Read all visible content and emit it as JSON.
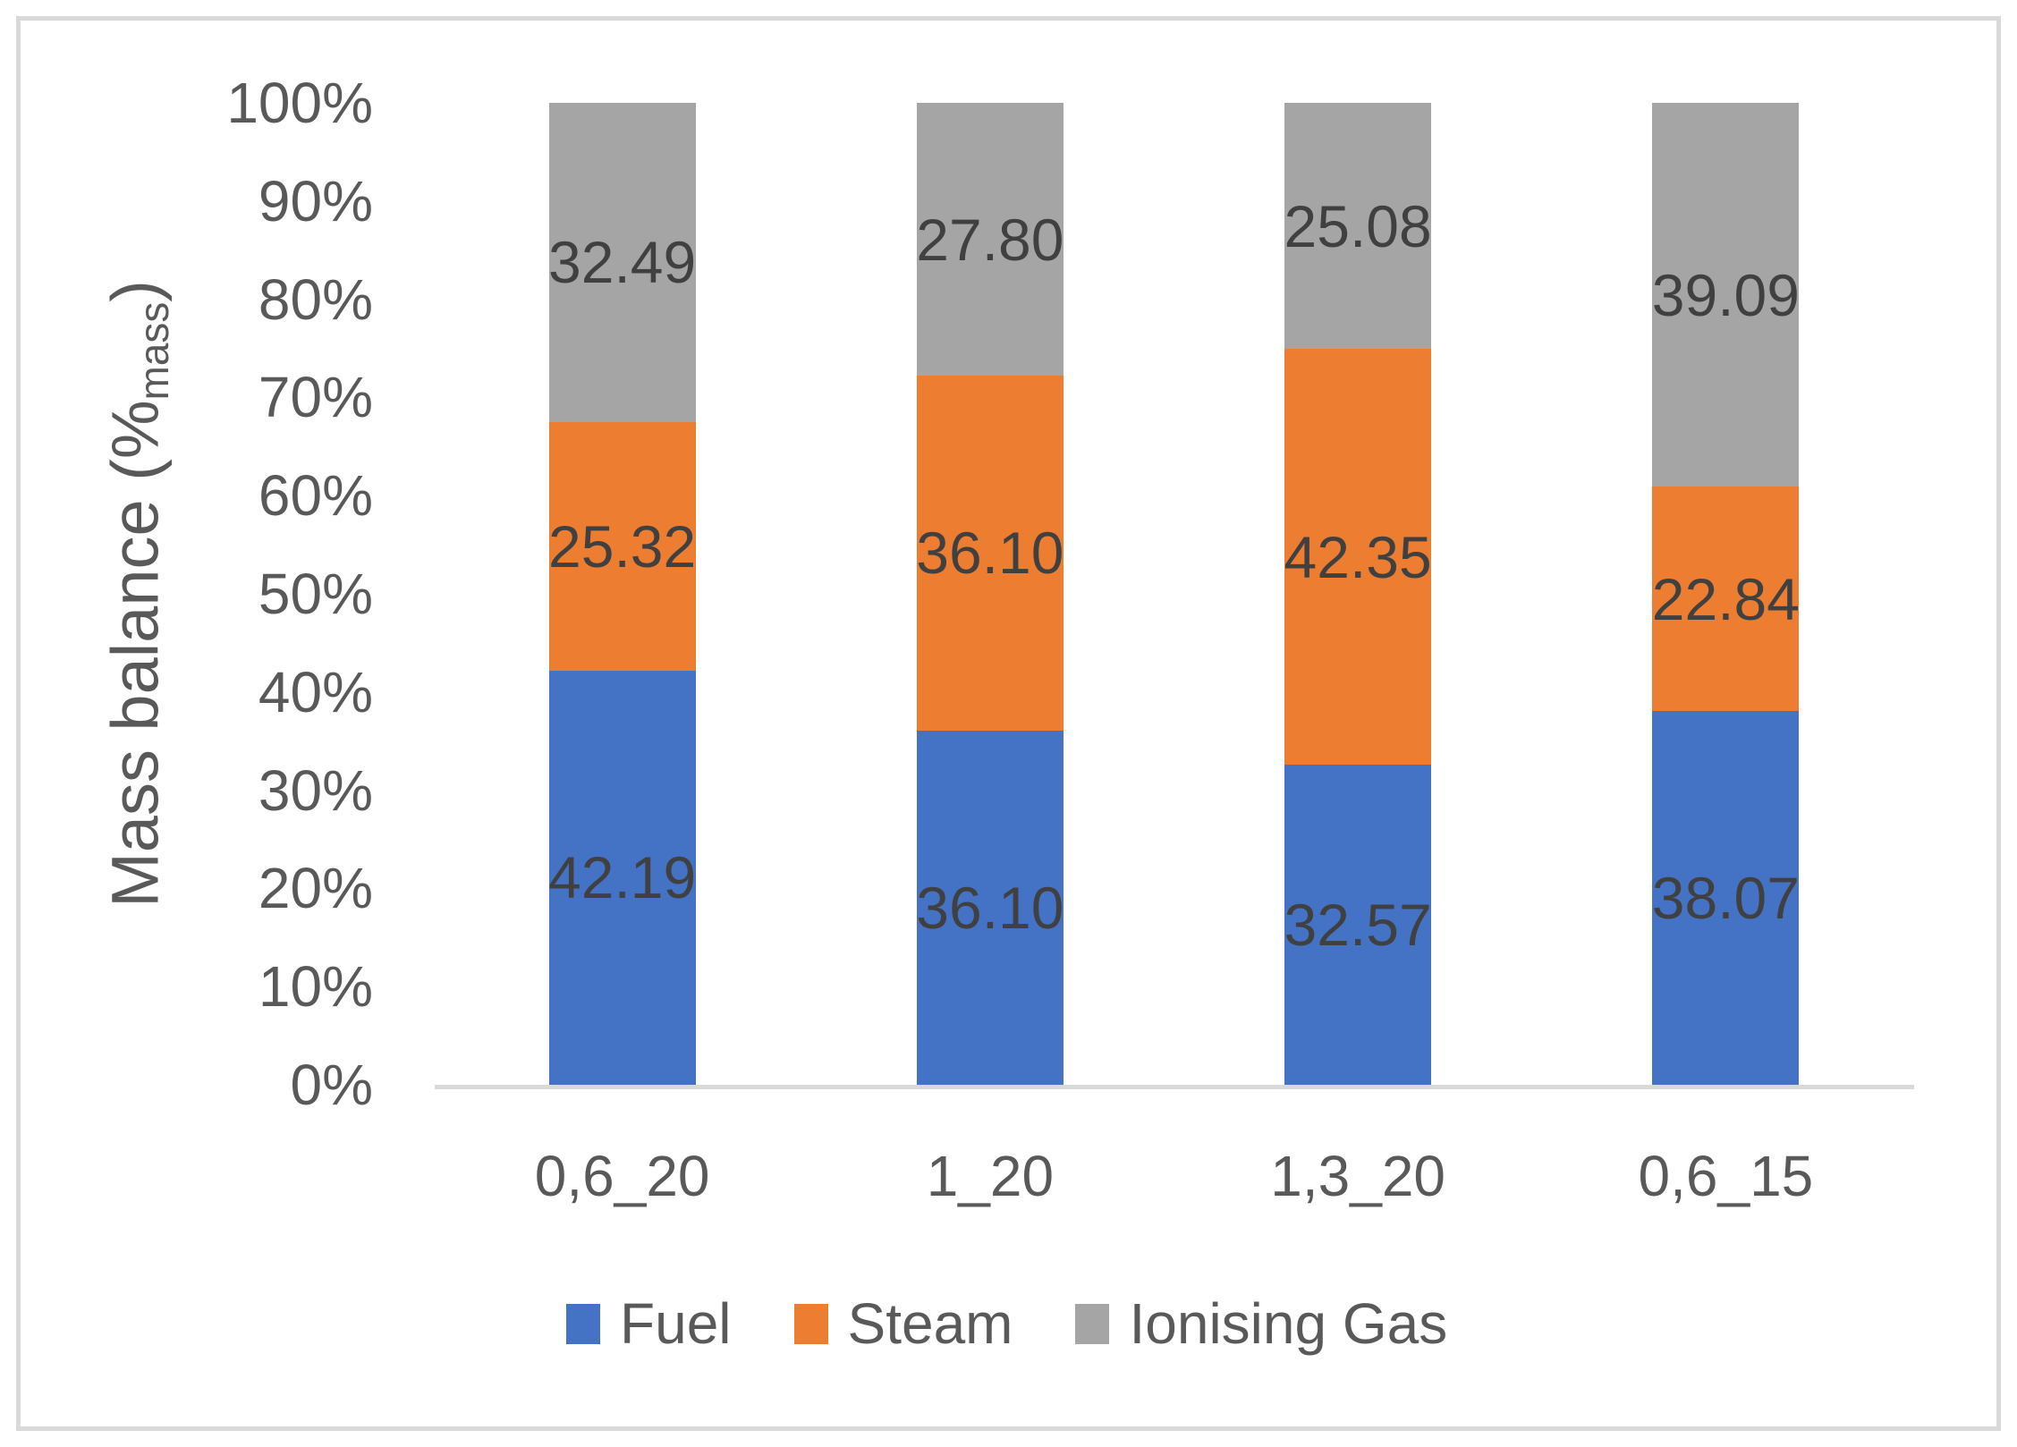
{
  "chart_data": {
    "type": "bar",
    "stacked": true,
    "percent_stacked": true,
    "categories": [
      "0,6_20",
      "1_20",
      "1,3_20",
      "0,6_15"
    ],
    "series": [
      {
        "name": "Fuel",
        "color": "#4472C4",
        "values": [
          42.19,
          36.1,
          32.57,
          38.07
        ]
      },
      {
        "name": "Steam",
        "color": "#ED7D31",
        "values": [
          25.32,
          36.1,
          42.35,
          22.84
        ]
      },
      {
        "name": "Ionising Gas",
        "color": "#A5A5A5",
        "values": [
          32.49,
          27.8,
          25.08,
          39.09
        ]
      }
    ],
    "data_labels_decimals": 2,
    "ylabel_main": "Mass balance (%",
    "ylabel_sub": "mass",
    "ylabel_suffix": ")",
    "y_ticks": [
      "0%",
      "10%",
      "20%",
      "30%",
      "40%",
      "50%",
      "60%",
      "70%",
      "80%",
      "90%",
      "100%"
    ],
    "ylim": [
      0,
      100
    ],
    "grid": false,
    "legend_position": "bottom",
    "title": ""
  },
  "colors": {
    "axis_line": "#D9D9D9",
    "frame_border": "#D9D9D9",
    "tick_text": "#595959",
    "data_label_text": "#404040",
    "background": "#FFFFFF"
  }
}
